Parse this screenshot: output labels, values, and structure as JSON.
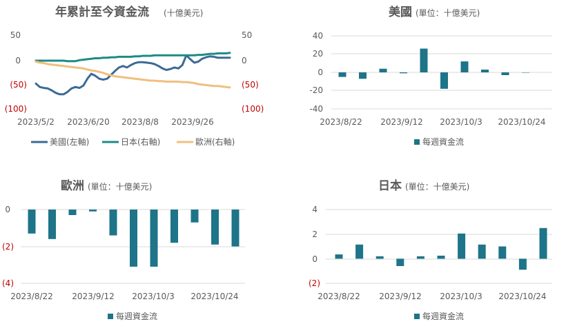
{
  "chart_data": [
    {
      "id": "cum",
      "type": "line",
      "title": "年累計至今資金流",
      "subtitle": "(十億美元)",
      "x_labels": [
        "2023/5/2",
        "2023/6/20",
        "2023/8/8",
        "2023/9/26"
      ],
      "left_y_ticks": [
        "50",
        "0",
        "(50)",
        "(100)"
      ],
      "right_y_ticks": [
        "50",
        "0",
        "(50)",
        "(100)"
      ],
      "ylim": [
        -100,
        50
      ],
      "n_points": 50,
      "series": [
        {
          "name": "美國(左軸)",
          "color": "#3b6a96",
          "values": [
            -48,
            -55,
            -57,
            -58,
            -62,
            -67,
            -70,
            -70,
            -65,
            -58,
            -55,
            -57,
            -52,
            -38,
            -28,
            -32,
            -38,
            -40,
            -38,
            -30,
            -22,
            -15,
            -12,
            -15,
            -10,
            -6,
            -4,
            -4,
            -5,
            -6,
            -8,
            -12,
            -17,
            -20,
            -18,
            -15,
            -17,
            -10,
            10,
            2,
            -5,
            -3,
            3,
            6,
            8,
            7,
            5,
            5,
            5,
            5
          ]
        },
        {
          "name": "日本(右軸)",
          "color": "#1d8a86",
          "values": [
            -1,
            -1,
            -1,
            -1,
            -1,
            -1,
            -1,
            -1,
            -2,
            -2,
            -2,
            0,
            1,
            2,
            3,
            4,
            4,
            5,
            5,
            6,
            6,
            7,
            7,
            7,
            7,
            8,
            8,
            9,
            9,
            9,
            10,
            10,
            10,
            10,
            10,
            10,
            10,
            10,
            10,
            10,
            10,
            11,
            11,
            12,
            13,
            13,
            14,
            14,
            14,
            15
          ]
        },
        {
          "name": "歐洲(右軸)",
          "color": "#f0bf7e",
          "values": [
            -3,
            -5,
            -6,
            -8,
            -9,
            -10,
            -11,
            -12,
            -13,
            -14,
            -15,
            -16,
            -17,
            -19,
            -21,
            -22,
            -24,
            -26,
            -29,
            -31,
            -33,
            -34,
            -35,
            -36,
            -37,
            -38,
            -39,
            -40,
            -41,
            -42,
            -42,
            -43,
            -43,
            -44,
            -44,
            -44,
            -44,
            -45,
            -45,
            -46,
            -47,
            -49,
            -50,
            -51,
            -52,
            -53,
            -53,
            -54,
            -55,
            -56
          ]
        }
      ]
    },
    {
      "id": "us",
      "type": "bar",
      "title": "美國",
      "subtitle": "(單位：十億美元)",
      "y_ticks": [
        40,
        20,
        0,
        -20,
        -40
      ],
      "ylim": [
        -40,
        40
      ],
      "x_labels": [
        "2023/8/22",
        "2023/9/12",
        "2023/10/3",
        "2023/10/24"
      ],
      "values": [
        -5,
        -7,
        4,
        -1,
        26,
        -18,
        12,
        3,
        -3,
        0
      ],
      "legend": "每週資金流",
      "color": "#1e7489"
    },
    {
      "id": "eu",
      "type": "bar",
      "title": "歐洲",
      "subtitle": "(單位：十億美元)",
      "y_ticks": [
        "0",
        "(2)",
        "(4)"
      ],
      "ylim": [
        -4,
        0
      ],
      "x_labels": [
        "2023/8/22",
        "2023/9/12",
        "2023/10/3",
        "2023/10/24"
      ],
      "values": [
        -1.3,
        -1.6,
        -0.3,
        -0.1,
        -1.4,
        -3.1,
        -3.1,
        -1.8,
        -0.7,
        -1.9,
        -2.0
      ],
      "legend": "每週資金流",
      "color": "#1e7489"
    },
    {
      "id": "jp",
      "type": "bar",
      "title": "日本",
      "subtitle": "(單位：十億美元)",
      "y_ticks": [
        "4",
        "2",
        "0",
        "(2)"
      ],
      "ylim": [
        -2,
        4
      ],
      "x_labels": [
        "2023/8/22",
        "2023/9/12",
        "2023/10/3",
        "2023/10/24"
      ],
      "values": [
        0.35,
        1.15,
        0.2,
        -0.6,
        0.2,
        0.25,
        2.05,
        1.15,
        1.0,
        -0.9,
        2.5
      ],
      "legend": "每週資金流",
      "color": "#1e7489"
    }
  ]
}
